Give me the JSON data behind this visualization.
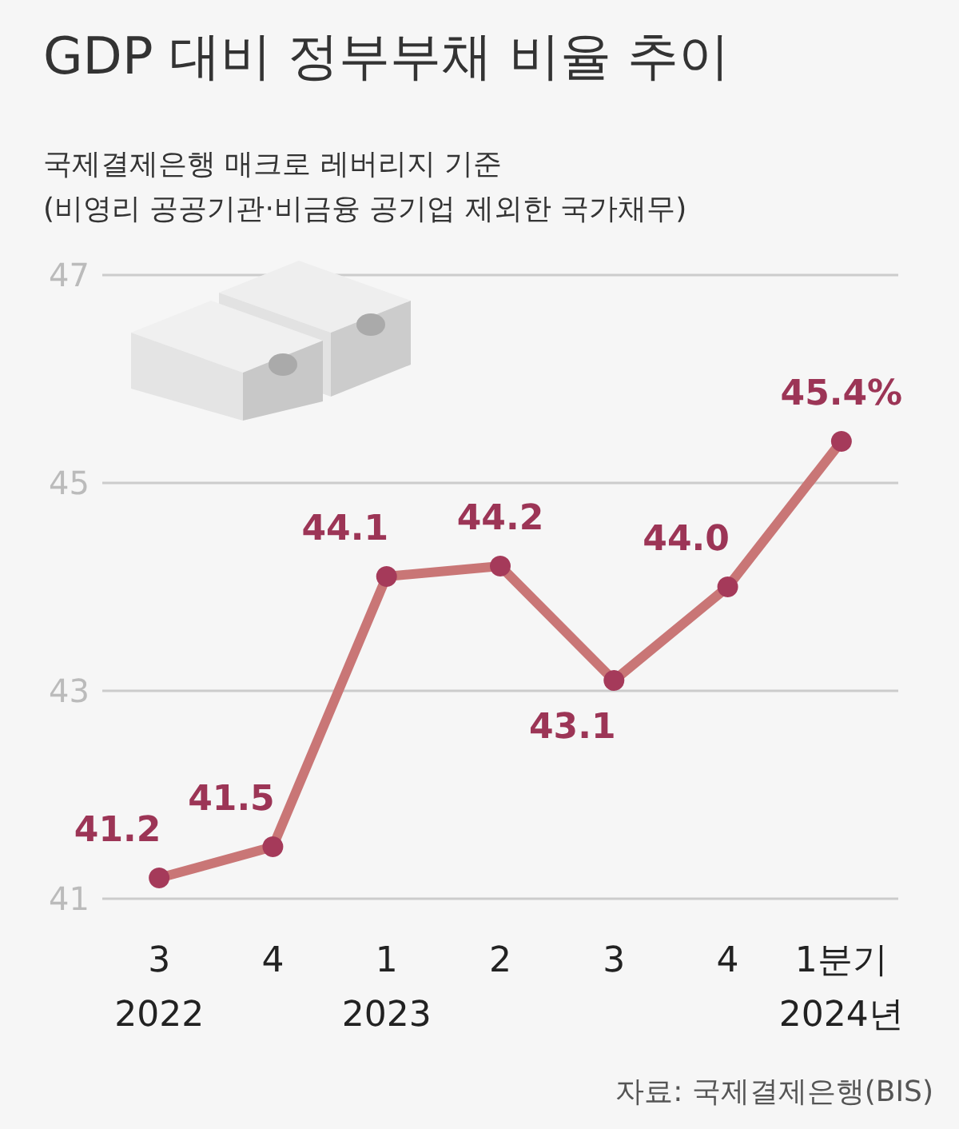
{
  "chart_data": {
    "type": "line",
    "title": "GDP 대비 정부부채 비율 추이",
    "subtitle": "국제결제은행 매크로 레버리지 기준\n(비영리 공공기관·비금융 공기업 제외한 국가채무)",
    "categories": [
      "3\n2022",
      "4",
      "1\n2023",
      "2",
      "3",
      "4",
      "1분기\n2024년"
    ],
    "series": [
      {
        "color": "#c97676",
        "values": [
          41.2,
          41.5,
          44.1,
          44.2,
          43.1,
          44.0,
          45.4
        ],
        "value_labels": [
          "41.2",
          "41.5",
          "44.1",
          "44.2",
          "43.1",
          "44.0",
          "45.4%"
        ]
      }
    ],
    "ylim": [
      41,
      47
    ],
    "yticks": [
      41,
      43,
      45,
      47
    ],
    "grid": "y",
    "marker": "circle",
    "line_style": "solid",
    "annotations": [
      "자료: 국제결제은행(BIS)"
    ]
  }
}
